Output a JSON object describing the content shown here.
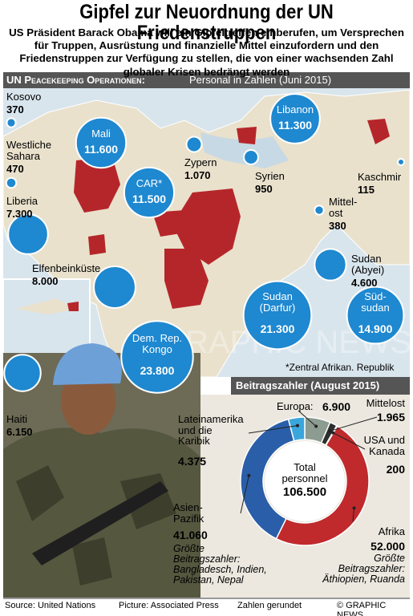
{
  "header": {
    "title": "Gipfel zur Neuordnung der UN Friedenstruppen",
    "subtitle": "US Präsident Barack Obama will ein Gipfeltreffen einberufen, um Versprechen für Truppen, Ausrüstung und finanzielle Mittel einzufordern und den Friedenstruppen zur Verfügung zu stellen, die von einer wachsenden Zahl globaler Krisen bedrängt werden"
  },
  "map": {
    "section_title": "UN Peacekeeping Operationen:",
    "section_subtitle": "Personal in Zahlen (Juni 2015)",
    "footnote": "*Zentral Afrikan. Republik",
    "missions": [
      {
        "name": "Kosovo",
        "value": 370,
        "label": "370"
      },
      {
        "name": "Westliche\nSahara",
        "value": 470,
        "label": "470"
      },
      {
        "name": "Liberia",
        "value": 7300,
        "label": "7.300"
      },
      {
        "name": "Mali",
        "value": 11600,
        "label": "11.600"
      },
      {
        "name": "CAR*",
        "value": 11500,
        "label": "11.500"
      },
      {
        "name": "Zypern",
        "value": 1070,
        "label": "1.070"
      },
      {
        "name": "Syrien",
        "value": 950,
        "label": "950"
      },
      {
        "name": "Libanon",
        "value": 11300,
        "label": "11.300"
      },
      {
        "name": "Kaschmir",
        "value": 115,
        "label": "115"
      },
      {
        "name": "Mittel-\nost",
        "value": 380,
        "label": "380"
      },
      {
        "name": "Sudan\n(Abyei)",
        "value": 4600,
        "label": "4.600"
      },
      {
        "name": "Süd-\nsudan",
        "value": 14900,
        "label": "14.900"
      },
      {
        "name": "Sudan\n(Darfur)",
        "value": 21300,
        "label": "21.300"
      },
      {
        "name": "Dem. Rep.\nKongo",
        "value": 23800,
        "label": "23.800"
      },
      {
        "name": "Elfenbeinküste",
        "value": 8000,
        "label": "8.000"
      },
      {
        "name": "Haiti",
        "value": 6150,
        "label": "6.150"
      }
    ]
  },
  "chart_data": {
    "type": "donut",
    "title": "Beitragszahler (August 2015)",
    "center_label": "Total\npersonnel",
    "total": {
      "value": 106500,
      "label": "106.500"
    },
    "categories": [
      "Europa:",
      "Mittelost",
      "USA und\nKanada",
      "Afrika",
      "Asien-\nPazifik",
      "Lateinamerika\nund die\nKaribik"
    ],
    "values": [
      6900,
      1965,
      200,
      52000,
      41060,
      4375
    ],
    "value_labels": [
      "6.900",
      "1.965",
      "200",
      "52.000",
      "41.060",
      "4.375"
    ],
    "colors": [
      "#8c9c90",
      "#2e2e2e",
      "#e89a2c",
      "#c02a2c",
      "#2a5ea8",
      "#3aa6dc"
    ],
    "annotations": [
      "Größte\nBeitragszahler:\nÄthiopien, Ruanda",
      "Größte\nBeitragszahler:\nBangladesch, Indien,\nPakistan, Nepal"
    ]
  },
  "footer": {
    "source": "Source: United Nations",
    "picture": "Picture: Associated Press",
    "note": "Zahlen gerundet",
    "credit": "© GRAPHIC NEWS"
  }
}
